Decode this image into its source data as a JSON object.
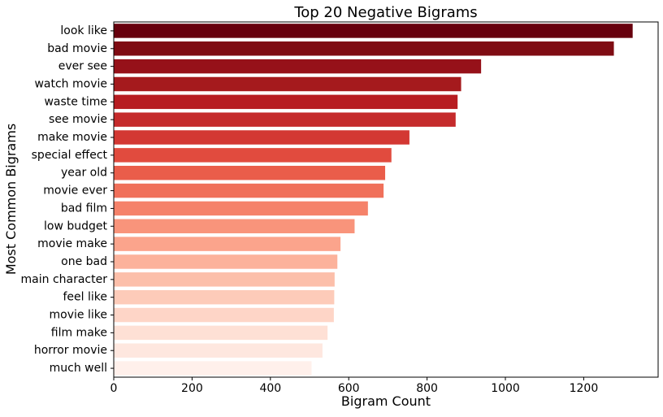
{
  "chart_data": {
    "type": "bar",
    "orientation": "horizontal",
    "title": "Top 20 Negative Bigrams",
    "xlabel": "Bigram Count",
    "ylabel": "Most Common Bigrams",
    "categories": [
      "look like",
      "bad movie",
      "ever see",
      "watch movie",
      "waste time",
      "see movie",
      "make movie",
      "special effect",
      "year old",
      "movie ever",
      "bad film",
      "low budget",
      "movie make",
      "one bad",
      "main character",
      "feel like",
      "movie like",
      "film make",
      "horror movie",
      "much well"
    ],
    "values": [
      1325,
      1277,
      938,
      887,
      878,
      873,
      755,
      709,
      693,
      689,
      649,
      615,
      579,
      571,
      564,
      563,
      562,
      546,
      533,
      505
    ],
    "xlim": [
      0,
      1390
    ],
    "xticks": [
      0,
      200,
      400,
      600,
      800,
      1000,
      1200
    ],
    "grid": false,
    "legend": "none",
    "colors": [
      "#67000d",
      "#7f0c13",
      "#961119",
      "#a51a1d",
      "#b71d22",
      "#c52b2c",
      "#d33833",
      "#e14b3e",
      "#ea5d4a",
      "#f0705a",
      "#f5826a",
      "#f9947b",
      "#fba48c",
      "#fcb29b",
      "#fcbfaa",
      "#fdcbb9",
      "#fed5c7",
      "#fee0d5",
      "#fee7df",
      "#fff0eb"
    ]
  }
}
